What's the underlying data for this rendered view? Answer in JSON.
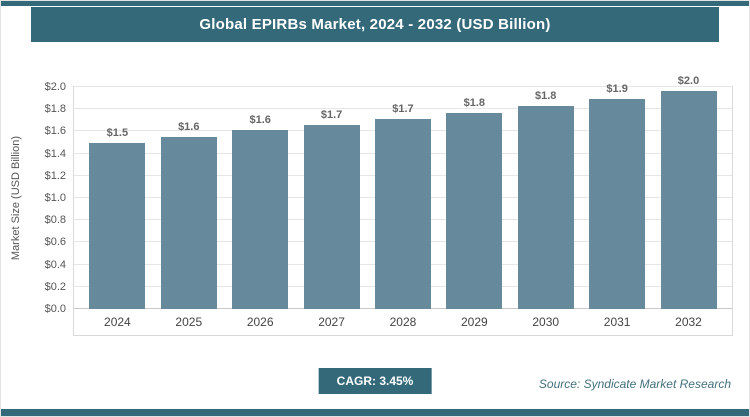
{
  "header": {
    "title": "Global EPIRBs Market, 2024 - 2032 (USD Billion)"
  },
  "chart_data": {
    "type": "bar",
    "title": "Global EPIRBs Market, 2024 - 2032 (USD Billion)",
    "categories": [
      "2024",
      "2025",
      "2026",
      "2027",
      "2028",
      "2029",
      "2030",
      "2031",
      "2032"
    ],
    "values": [
      1.5,
      1.55,
      1.61,
      1.66,
      1.71,
      1.77,
      1.83,
      1.89,
      1.96
    ],
    "bar_labels": [
      "$1.5",
      "$1.6",
      "$1.6",
      "$1.7",
      "$1.7",
      "$1.8",
      "$1.8",
      "$1.9",
      "$2.0"
    ],
    "xlabel": "",
    "ylabel": "Market Size (USD Billion)",
    "ylim": [
      0,
      2.0
    ],
    "ytick_values": [
      0,
      0.2,
      0.4,
      0.6,
      0.8,
      1.0,
      1.2,
      1.4,
      1.6,
      1.8,
      2.0
    ],
    "ytick_labels": [
      "$0.0",
      "$0.2",
      "$0.4",
      "$0.6",
      "$0.8",
      "$1.0",
      "$1.2",
      "$1.4",
      "$1.6",
      "$1.8",
      "$2.0"
    ],
    "grid": true,
    "legend": "none",
    "bar_color": "#66899B"
  },
  "footer": {
    "cagr_label": "CAGR: 3.45%",
    "source": "Source: Syndicate Market Research"
  },
  "colors": {
    "accent": "#34697A",
    "bar": "#66899B"
  }
}
